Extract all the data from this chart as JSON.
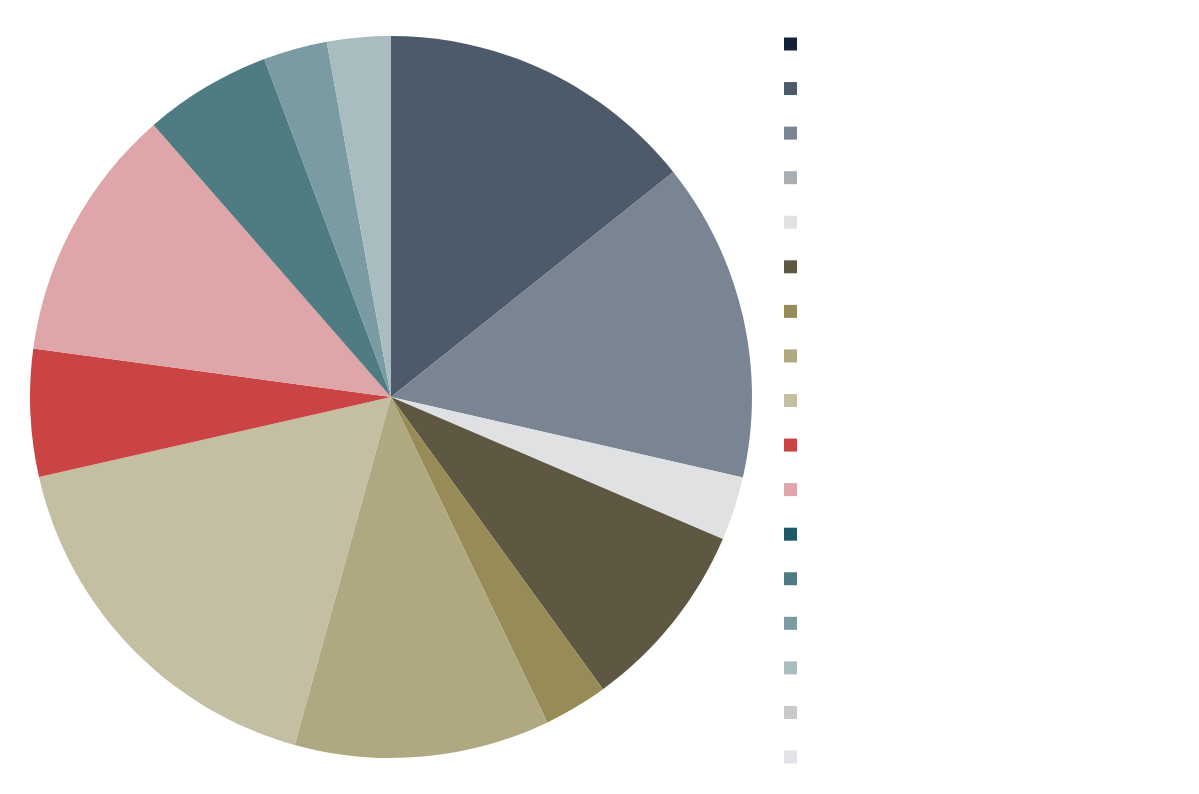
{
  "chart_data": {
    "type": "pie",
    "categories": [
      null,
      null,
      null,
      null,
      null,
      null,
      null,
      null,
      null,
      null,
      null,
      null,
      null,
      null,
      null,
      null,
      null
    ],
    "values": [
      0,
      14.29,
      14.29,
      0,
      2.86,
      8.57,
      2.86,
      11.43,
      17.14,
      5.71,
      11.43,
      0,
      5.71,
      2.86,
      2.85,
      0,
      0
    ],
    "colors": [
      "#12203a",
      "#4d5a6a",
      "#7a8594",
      "#a9aeb2",
      "#e0e1e2",
      "#5e5843",
      "#978b58",
      "#afa880",
      "#c4bea3",
      "#cb4444",
      "#dea6a8",
      "#1d5a68",
      "#4f7b82",
      "#7a9ba1",
      "#a9bcc0",
      "#c8c9cb",
      "#e2e3e8"
    ]
  }
}
